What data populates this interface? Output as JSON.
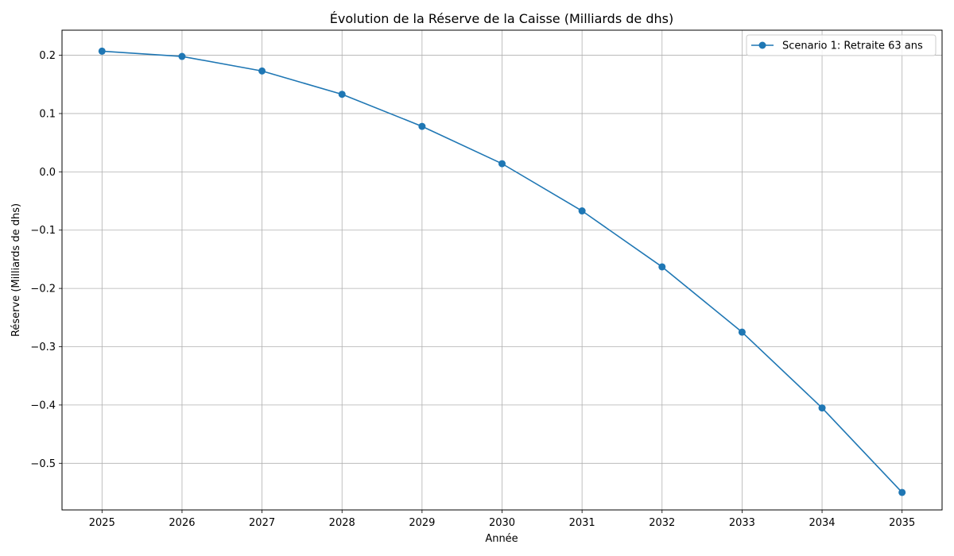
{
  "chart_data": {
    "type": "line",
    "title": "Évolution de la Réserve de la Caisse (Milliards de dhs)",
    "xlabel": "Année",
    "ylabel": "Réserve (Milliards de dhs)",
    "x": [
      2025,
      2026,
      2027,
      2028,
      2029,
      2030,
      2031,
      2032,
      2033,
      2034,
      2035
    ],
    "x_tick_labels": [
      "2025",
      "2026",
      "2027",
      "2028",
      "2029",
      "2030",
      "2031",
      "2032",
      "2033",
      "2034",
      "2035"
    ],
    "xlim": [
      2024.5,
      2035.5
    ],
    "y_ticks": [
      0.2,
      0.1,
      0.0,
      -0.1,
      -0.2,
      -0.3,
      -0.4,
      -0.5
    ],
    "y_tick_labels": [
      "0.2",
      "0.1",
      "0.0",
      "−0.1",
      "−0.2",
      "−0.3",
      "−0.4",
      "−0.5"
    ],
    "ylim": [
      -0.58,
      0.243
    ],
    "grid": true,
    "legend_position": "top-right",
    "series": [
      {
        "name": "Scenario 1: Retraite 63 ans",
        "color": "#1f77b4",
        "marker": "circle",
        "values": [
          0.207,
          0.198,
          0.173,
          0.133,
          0.078,
          0.014,
          -0.067,
          -0.163,
          -0.275,
          -0.405,
          -0.55
        ]
      }
    ]
  }
}
